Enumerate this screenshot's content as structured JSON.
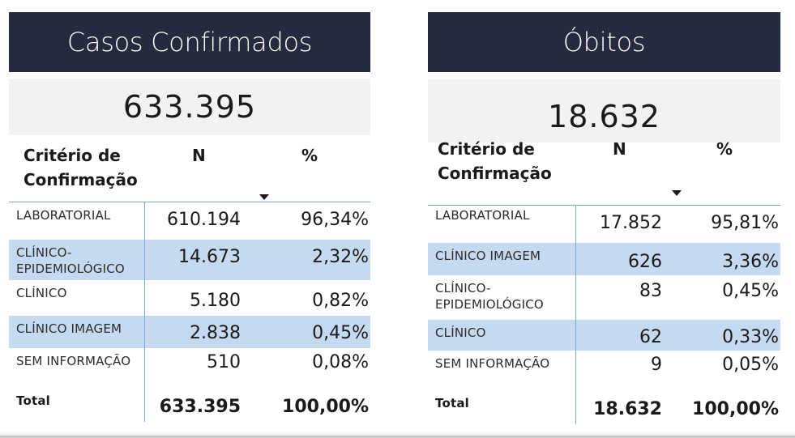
{
  "left": {
    "title": "Casos Confirmados",
    "kpi": "633.395",
    "header": {
      "criterio": "Critério de Confirmação",
      "n": "N",
      "pct": "%"
    },
    "rows": [
      {
        "criterio": "LABORATORIAL",
        "n": "610.194",
        "pct": "96,34%"
      },
      {
        "criterio": "CLÍNICO-EPIDEMIOLÓGICO",
        "n": "14.673",
        "pct": "2,32%"
      },
      {
        "criterio": "CLÍNICO",
        "n": "5.180",
        "pct": "0,82%"
      },
      {
        "criterio": "CLÍNICO IMAGEM",
        "n": "2.838",
        "pct": "0,45%"
      },
      {
        "criterio": "SEM INFORMAÇÃO",
        "n": "510",
        "pct": "0,08%"
      }
    ],
    "total": {
      "label": "Total",
      "n": "633.395",
      "pct": "100,00%"
    }
  },
  "right": {
    "title": "Óbitos",
    "kpi": "18.632",
    "header": {
      "criterio": "Critério de Confirmação",
      "n": "N",
      "pct": "%"
    },
    "rows": [
      {
        "criterio": "LABORATORIAL",
        "n": "17.852",
        "pct": "95,81%"
      },
      {
        "criterio": "CLÍNICO IMAGEM",
        "n": "626",
        "pct": "3,36%"
      },
      {
        "criterio": "CLÍNICO-EPIDEMIOLÓGICO",
        "n": "83",
        "pct": "0,45%"
      },
      {
        "criterio": "CLÍNICO",
        "n": "62",
        "pct": "0,33%"
      },
      {
        "criterio": "SEM INFORMAÇÃO",
        "n": "9",
        "pct": "0,05%"
      }
    ],
    "total": {
      "label": "Total",
      "n": "18.632",
      "pct": "100,00%"
    }
  },
  "colors": {
    "title_bg": "#252a3f",
    "kpi_bg": "#f2f2f2",
    "row_highlight": "#c5d9f1",
    "divider": "#7aa6d8"
  },
  "icons": {
    "sort": "sort-descending-icon"
  }
}
